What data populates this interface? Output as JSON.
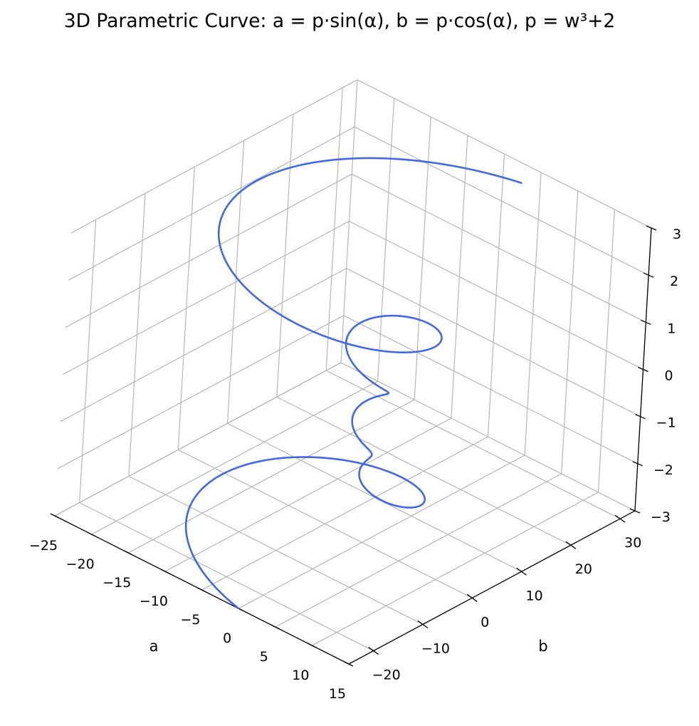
{
  "chart_data": {
    "type": "line",
    "projection": "3d",
    "title": "3D Parametric Curve: a = p·sin(α), b = p·cos(α), p = w³+2",
    "xlabel": "a",
    "ylabel": "b",
    "zlabel": "",
    "xlim": [
      -25,
      15
    ],
    "ylim": [
      -25,
      33
    ],
    "zlim": [
      -3,
      3
    ],
    "xticks": [
      -25,
      -20,
      -15,
      -10,
      -5,
      0,
      5,
      10,
      15
    ],
    "yticks": [
      -20,
      -10,
      0,
      10,
      20,
      30
    ],
    "zticks": [
      -3,
      -2,
      -1,
      0,
      1,
      2,
      3
    ],
    "xtick_labels": [
      "−25",
      "−20",
      "−15",
      "−10",
      "−5",
      "0",
      "5",
      "10",
      "15"
    ],
    "ytick_labels": [
      "−20",
      "−10",
      "0",
      "10",
      "20",
      "30"
    ],
    "ztick_labels": [
      "−3",
      "−2",
      "−1",
      "0",
      "1",
      "2",
      "3"
    ],
    "grid": true,
    "view": {
      "elev": 20,
      "azim": -35
    },
    "series": [
      {
        "color": "#4169e1",
        "parameter_range": [
          -3,
          3
        ],
        "angle_range": [
          -12.566,
          12.566
        ],
        "points": [
          {
            "a": -2.9,
            "b": -24.7,
            "z": -3.0
          },
          {
            "a": -24.8,
            "b": 2.0,
            "z": -2.5
          },
          {
            "a": 11.0,
            "b": 9.2,
            "z": -2.0
          },
          {
            "a": 0.1,
            "b": -6.4,
            "z": -1.5
          },
          {
            "a": 2.2,
            "b": -0.2,
            "z": -1.0
          },
          {
            "a": 0.6,
            "b": 1.6,
            "z": -0.5
          },
          {
            "a": 0.0,
            "b": 2.0,
            "z": 0.0
          },
          {
            "a": -0.6,
            "b": 1.6,
            "z": 0.5
          },
          {
            "a": 3.6,
            "b": 0.3,
            "z": 1.0
          },
          {
            "a": -0.2,
            "b": 9.5,
            "z": 1.5
          },
          {
            "a": -11.0,
            "b": -9.2,
            "z": 2.0
          },
          {
            "a": 24.8,
            "b": 2.0,
            "z": 2.5
          },
          {
            "a": 2.9,
            "b": 24.7,
            "z": 3.0
          }
        ]
      }
    ]
  }
}
